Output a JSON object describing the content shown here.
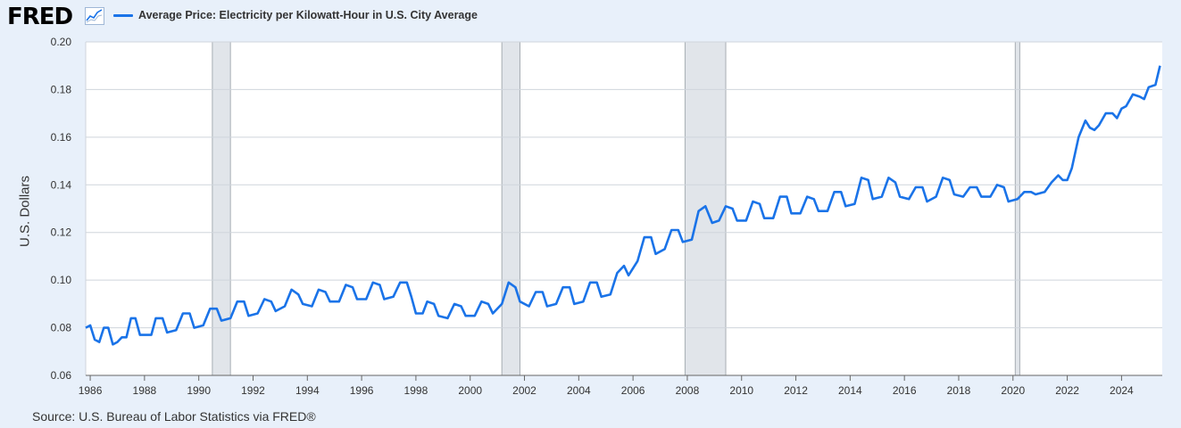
{
  "header": {
    "logo_text": "FRED",
    "logo_icon": "fred-line-chart-icon"
  },
  "chart_data": {
    "type": "line",
    "title": "",
    "xlabel": "",
    "ylabel": "U.S. Dollars",
    "ylim": [
      0.06,
      0.2
    ],
    "xlim": [
      "1985-11",
      "2025-07"
    ],
    "y_ticks": [
      "0.06",
      "0.08",
      "0.10",
      "0.12",
      "0.14",
      "0.16",
      "0.18",
      "0.20"
    ],
    "x_ticks": [
      "1986",
      "1988",
      "1990",
      "1992",
      "1994",
      "1996",
      "1998",
      "2000",
      "2002",
      "2004",
      "2006",
      "2008",
      "2010",
      "2012",
      "2014",
      "2016",
      "2018",
      "2020",
      "2022",
      "2024"
    ],
    "grid": true,
    "legend_position": "top-left",
    "recessions": [
      {
        "start": "1990-07",
        "end": "1991-03"
      },
      {
        "start": "2001-03",
        "end": "2001-11"
      },
      {
        "start": "2007-12",
        "end": "2009-06"
      },
      {
        "start": "2020-02",
        "end": "2020-04"
      }
    ],
    "series": [
      {
        "name": "Average Price: Electricity per Kilowatt-Hour in U.S. City Average",
        "color": "#1a73e8",
        "points": [
          [
            "1985-11",
            0.08
          ],
          [
            "1986-01",
            0.081
          ],
          [
            "1986-03",
            0.075
          ],
          [
            "1986-05",
            0.074
          ],
          [
            "1986-07",
            0.08
          ],
          [
            "1986-09",
            0.08
          ],
          [
            "1986-11",
            0.073
          ],
          [
            "1987-01",
            0.074
          ],
          [
            "1987-03",
            0.076
          ],
          [
            "1987-05",
            0.076
          ],
          [
            "1987-07",
            0.084
          ],
          [
            "1987-09",
            0.084
          ],
          [
            "1987-11",
            0.077
          ],
          [
            "1988-01",
            0.077
          ],
          [
            "1988-04",
            0.077
          ],
          [
            "1988-06",
            0.084
          ],
          [
            "1988-09",
            0.084
          ],
          [
            "1988-11",
            0.078
          ],
          [
            "1989-03",
            0.079
          ],
          [
            "1989-06",
            0.086
          ],
          [
            "1989-09",
            0.086
          ],
          [
            "1989-11",
            0.08
          ],
          [
            "1990-03",
            0.081
          ],
          [
            "1990-06",
            0.088
          ],
          [
            "1990-09",
            0.088
          ],
          [
            "1990-11",
            0.083
          ],
          [
            "1991-03",
            0.084
          ],
          [
            "1991-06",
            0.091
          ],
          [
            "1991-09",
            0.091
          ],
          [
            "1991-11",
            0.085
          ],
          [
            "1992-03",
            0.086
          ],
          [
            "1992-06",
            0.092
          ],
          [
            "1992-09",
            0.091
          ],
          [
            "1992-11",
            0.087
          ],
          [
            "1993-03",
            0.089
          ],
          [
            "1993-06",
            0.096
          ],
          [
            "1993-09",
            0.094
          ],
          [
            "1993-11",
            0.09
          ],
          [
            "1994-03",
            0.089
          ],
          [
            "1994-06",
            0.096
          ],
          [
            "1994-09",
            0.095
          ],
          [
            "1994-11",
            0.091
          ],
          [
            "1995-03",
            0.091
          ],
          [
            "1995-06",
            0.098
          ],
          [
            "1995-09",
            0.097
          ],
          [
            "1995-11",
            0.092
          ],
          [
            "1996-03",
            0.092
          ],
          [
            "1996-06",
            0.099
          ],
          [
            "1996-09",
            0.098
          ],
          [
            "1996-11",
            0.092
          ],
          [
            "1997-03",
            0.093
          ],
          [
            "1997-06",
            0.099
          ],
          [
            "1997-09",
            0.099
          ],
          [
            "1997-11",
            0.093
          ],
          [
            "1998-01",
            0.086
          ],
          [
            "1998-04",
            0.086
          ],
          [
            "1998-06",
            0.091
          ],
          [
            "1998-09",
            0.09
          ],
          [
            "1998-11",
            0.085
          ],
          [
            "1999-03",
            0.084
          ],
          [
            "1999-06",
            0.09
          ],
          [
            "1999-09",
            0.089
          ],
          [
            "1999-11",
            0.085
          ],
          [
            "2000-03",
            0.085
          ],
          [
            "2000-06",
            0.091
          ],
          [
            "2000-09",
            0.09
          ],
          [
            "2000-11",
            0.086
          ],
          [
            "2001-03",
            0.09
          ],
          [
            "2001-06",
            0.099
          ],
          [
            "2001-09",
            0.097
          ],
          [
            "2001-11",
            0.091
          ],
          [
            "2002-03",
            0.089
          ],
          [
            "2002-06",
            0.095
          ],
          [
            "2002-09",
            0.095
          ],
          [
            "2002-11",
            0.089
          ],
          [
            "2003-03",
            0.09
          ],
          [
            "2003-06",
            0.097
          ],
          [
            "2003-09",
            0.097
          ],
          [
            "2003-11",
            0.09
          ],
          [
            "2004-03",
            0.091
          ],
          [
            "2004-06",
            0.099
          ],
          [
            "2004-09",
            0.099
          ],
          [
            "2004-11",
            0.093
          ],
          [
            "2005-03",
            0.094
          ],
          [
            "2005-06",
            0.103
          ],
          [
            "2005-09",
            0.106
          ],
          [
            "2005-11",
            0.102
          ],
          [
            "2006-03",
            0.108
          ],
          [
            "2006-06",
            0.118
          ],
          [
            "2006-09",
            0.118
          ],
          [
            "2006-11",
            0.111
          ],
          [
            "2007-03",
            0.113
          ],
          [
            "2007-06",
            0.121
          ],
          [
            "2007-09",
            0.121
          ],
          [
            "2007-11",
            0.116
          ],
          [
            "2008-03",
            0.117
          ],
          [
            "2008-06",
            0.129
          ],
          [
            "2008-09",
            0.131
          ],
          [
            "2008-12",
            0.124
          ],
          [
            "2009-03",
            0.125
          ],
          [
            "2009-06",
            0.131
          ],
          [
            "2009-09",
            0.13
          ],
          [
            "2009-11",
            0.125
          ],
          [
            "2010-03",
            0.125
          ],
          [
            "2010-06",
            0.133
          ],
          [
            "2010-09",
            0.132
          ],
          [
            "2010-11",
            0.126
          ],
          [
            "2011-03",
            0.126
          ],
          [
            "2011-06",
            0.135
          ],
          [
            "2011-09",
            0.135
          ],
          [
            "2011-11",
            0.128
          ],
          [
            "2012-03",
            0.128
          ],
          [
            "2012-06",
            0.135
          ],
          [
            "2012-09",
            0.134
          ],
          [
            "2012-11",
            0.129
          ],
          [
            "2013-03",
            0.129
          ],
          [
            "2013-06",
            0.137
          ],
          [
            "2013-09",
            0.137
          ],
          [
            "2013-11",
            0.131
          ],
          [
            "2014-03",
            0.132
          ],
          [
            "2014-06",
            0.143
          ],
          [
            "2014-09",
            0.142
          ],
          [
            "2014-11",
            0.134
          ],
          [
            "2015-03",
            0.135
          ],
          [
            "2015-06",
            0.143
          ],
          [
            "2015-09",
            0.141
          ],
          [
            "2015-11",
            0.135
          ],
          [
            "2016-03",
            0.134
          ],
          [
            "2016-06",
            0.139
          ],
          [
            "2016-09",
            0.139
          ],
          [
            "2016-11",
            0.133
          ],
          [
            "2017-03",
            0.135
          ],
          [
            "2017-06",
            0.143
          ],
          [
            "2017-09",
            0.142
          ],
          [
            "2017-11",
            0.136
          ],
          [
            "2018-03",
            0.135
          ],
          [
            "2018-06",
            0.139
          ],
          [
            "2018-09",
            0.139
          ],
          [
            "2018-11",
            0.135
          ],
          [
            "2019-03",
            0.135
          ],
          [
            "2019-06",
            0.14
          ],
          [
            "2019-09",
            0.139
          ],
          [
            "2019-11",
            0.133
          ],
          [
            "2020-03",
            0.134
          ],
          [
            "2020-06",
            0.137
          ],
          [
            "2020-09",
            0.137
          ],
          [
            "2020-11",
            0.136
          ],
          [
            "2021-03",
            0.137
          ],
          [
            "2021-06",
            0.141
          ],
          [
            "2021-09",
            0.144
          ],
          [
            "2021-11",
            0.142
          ],
          [
            "2022-01",
            0.142
          ],
          [
            "2022-03",
            0.147
          ],
          [
            "2022-06",
            0.16
          ],
          [
            "2022-09",
            0.167
          ],
          [
            "2022-11",
            0.164
          ],
          [
            "2023-01",
            0.163
          ],
          [
            "2023-03",
            0.165
          ],
          [
            "2023-06",
            0.17
          ],
          [
            "2023-09",
            0.17
          ],
          [
            "2023-11",
            0.168
          ],
          [
            "2024-01",
            0.172
          ],
          [
            "2024-03",
            0.173
          ],
          [
            "2024-06",
            0.178
          ],
          [
            "2024-09",
            0.177
          ],
          [
            "2024-11",
            0.176
          ],
          [
            "2025-01",
            0.181
          ],
          [
            "2025-04",
            0.182
          ],
          [
            "2025-06",
            0.19
          ]
        ]
      }
    ]
  },
  "source": "Source: U.S. Bureau of Labor Statistics via FRED®"
}
